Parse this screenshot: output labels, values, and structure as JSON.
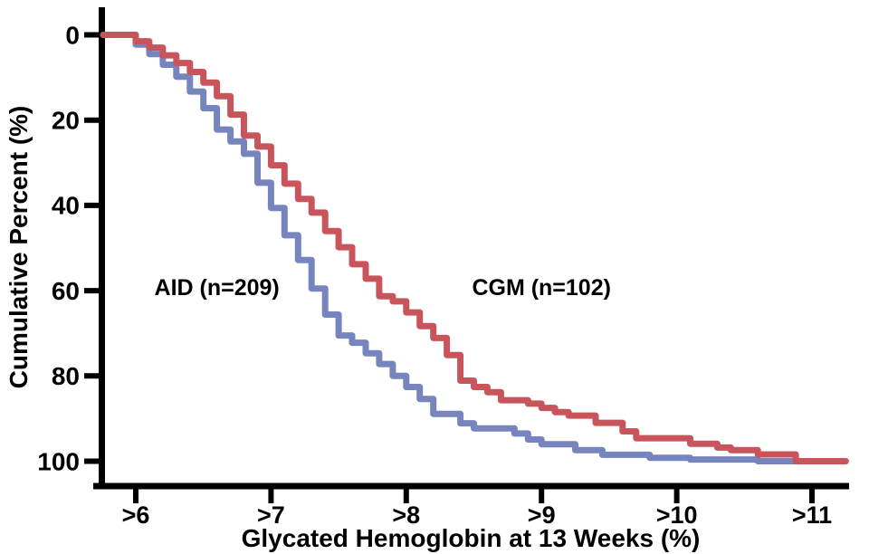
{
  "chart_data": {
    "type": "line",
    "subtype": "step-cumulative-distribution",
    "title": "",
    "xlabel": "Glycated Hemoglobin at 13 Weeks (%)",
    "ylabel": "Cumulative Percent (%)",
    "x_tick_labels": [
      ">6",
      ">7",
      ">8",
      ">9",
      ">10",
      ">11"
    ],
    "x_tick_values": [
      6,
      7,
      8,
      9,
      10,
      11
    ],
    "y_tick_labels": [
      "0",
      "20",
      "40",
      "60",
      "80",
      "100"
    ],
    "y_tick_values": [
      0,
      20,
      40,
      60,
      80,
      100
    ],
    "xlim": [
      5.7,
      11.35
    ],
    "ylim": [
      0,
      100
    ],
    "y_axis_inverted": true,
    "grid": false,
    "legend_position": "inline-annotations",
    "series": [
      {
        "name": "AID",
        "label": "AID (n=209)",
        "n": 209,
        "color": "#7685BD",
        "x_start": 5.76,
        "x_end": 10.87,
        "steps": [
          [
            6.0,
            2.3
          ],
          [
            6.1,
            4.5
          ],
          [
            6.2,
            7.0
          ],
          [
            6.3,
            9.8
          ],
          [
            6.4,
            13.3
          ],
          [
            6.5,
            17.2
          ],
          [
            6.6,
            22.2
          ],
          [
            6.7,
            25.0
          ],
          [
            6.8,
            27.9
          ],
          [
            6.9,
            34.7
          ],
          [
            7.0,
            40.6
          ],
          [
            7.1,
            47.0
          ],
          [
            7.2,
            52.8
          ],
          [
            7.3,
            59.5
          ],
          [
            7.4,
            65.6
          ],
          [
            7.5,
            70.5
          ],
          [
            7.6,
            72.2
          ],
          [
            7.7,
            74.7
          ],
          [
            7.8,
            77.2
          ],
          [
            7.9,
            80.0
          ],
          [
            8.0,
            82.6
          ],
          [
            8.1,
            85.4
          ],
          [
            8.2,
            88.9
          ],
          [
            8.4,
            91.1
          ],
          [
            8.5,
            92.3
          ],
          [
            8.8,
            93.5
          ],
          [
            8.9,
            94.9
          ],
          [
            9.0,
            96.0
          ],
          [
            9.25,
            97.4
          ],
          [
            9.45,
            98.5
          ],
          [
            9.8,
            99.2
          ],
          [
            10.1,
            99.6
          ],
          [
            10.6,
            100
          ]
        ]
      },
      {
        "name": "CGM",
        "label": "CGM (n=102)",
        "n": 102,
        "color": "#C8555C",
        "x_start": 5.76,
        "x_end": 11.25,
        "steps": [
          [
            6.0,
            1.5
          ],
          [
            6.1,
            3.0
          ],
          [
            6.2,
            4.8
          ],
          [
            6.3,
            6.6
          ],
          [
            6.4,
            8.7
          ],
          [
            6.5,
            11.2
          ],
          [
            6.6,
            14.4
          ],
          [
            6.7,
            18.7
          ],
          [
            6.8,
            23.6
          ],
          [
            6.9,
            26.2
          ],
          [
            7.0,
            30.6
          ],
          [
            7.1,
            34.9
          ],
          [
            7.2,
            38.5
          ],
          [
            7.3,
            41.7
          ],
          [
            7.4,
            46.0
          ],
          [
            7.5,
            49.8
          ],
          [
            7.6,
            53.8
          ],
          [
            7.7,
            57.2
          ],
          [
            7.8,
            61.3
          ],
          [
            7.9,
            62.5
          ],
          [
            8.0,
            65.1
          ],
          [
            8.1,
            68.3
          ],
          [
            8.2,
            71.1
          ],
          [
            8.3,
            75.1
          ],
          [
            8.4,
            81.1
          ],
          [
            8.5,
            82.6
          ],
          [
            8.6,
            83.8
          ],
          [
            8.7,
            85.7
          ],
          [
            8.9,
            86.5
          ],
          [
            9.0,
            87.5
          ],
          [
            9.1,
            88.5
          ],
          [
            9.2,
            89.3
          ],
          [
            9.4,
            91.0
          ],
          [
            9.6,
            93.0
          ],
          [
            9.7,
            94.6
          ],
          [
            10.1,
            95.9
          ],
          [
            10.3,
            96.8
          ],
          [
            10.4,
            97.4
          ],
          [
            10.6,
            98.4
          ],
          [
            10.88,
            100
          ]
        ]
      }
    ],
    "annotations": [
      {
        "text": "AID (n=209)",
        "series": "AID",
        "x_value": 6.6,
        "y_percent": 59.3
      },
      {
        "text": "CGM (n=102)",
        "series": "CGM",
        "x_value": 9.0,
        "y_percent": 59.3
      }
    ]
  },
  "colors": {
    "background": "#ffffff",
    "axis": "#000000",
    "text": "#000000",
    "aid_line": "#7685BD",
    "cgm_line": "#C8555C"
  }
}
